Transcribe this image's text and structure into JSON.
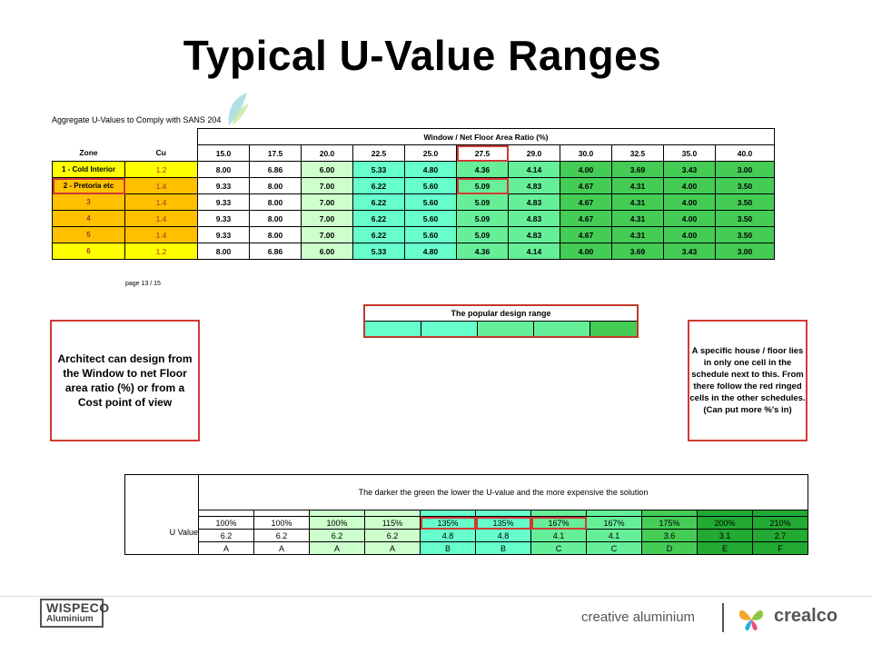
{
  "title": "Typical U-Value Ranges",
  "caption": "Aggregate U-Values to Comply  with SANS 204",
  "page_note": "page 13 / 15",
  "colors": {
    "yellow": "#ffff00",
    "orange": "#ffc000",
    "shade_0": "#ffffff",
    "shade_1": "#ccffcc",
    "shade_2": "#66ffcc",
    "shade_3": "#66ee99",
    "shade_4": "#44cc55",
    "shade_5": "#22aa33",
    "red_ring": "#d03b32"
  },
  "main_table": {
    "super_header": "Window / Net Floor Area Ratio (%)",
    "zone_header": "Zone",
    "cu_header": "Cu",
    "ratios": [
      "15.0",
      "17.5",
      "20.0",
      "22.5",
      "25.0",
      "27.5",
      "29.0",
      "30.0",
      "32.5",
      "35.0",
      "40.0"
    ],
    "rows": [
      {
        "zone": "1 - Cold Interior",
        "cu": "1.2",
        "values": [
          "8.00",
          "6.86",
          "6.00",
          "5.33",
          "4.80",
          "4.36",
          "4.14",
          "4.00",
          "3.69",
          "3.43",
          "3.00"
        ]
      },
      {
        "zone": "2 - Pretoria etc",
        "cu": "1.4",
        "values": [
          "9.33",
          "8.00",
          "7.00",
          "6.22",
          "5.60",
          "5.09",
          "4.83",
          "4.67",
          "4.31",
          "4.00",
          "3.50"
        ]
      },
      {
        "zone": "3",
        "cu": "1.4",
        "values": [
          "9.33",
          "8.00",
          "7.00",
          "6.22",
          "5.60",
          "5.09",
          "4.83",
          "4.67",
          "4.31",
          "4.00",
          "3.50"
        ]
      },
      {
        "zone": "4",
        "cu": "1.4",
        "values": [
          "9.33",
          "8.00",
          "7.00",
          "6.22",
          "5.60",
          "5.09",
          "4.83",
          "4.67",
          "4.31",
          "4.00",
          "3.50"
        ]
      },
      {
        "zone": "5",
        "cu": "1.4",
        "values": [
          "9.33",
          "8.00",
          "7.00",
          "6.22",
          "5.60",
          "5.09",
          "4.83",
          "4.67",
          "4.31",
          "4.00",
          "3.50"
        ]
      },
      {
        "zone": "6",
        "cu": "1.2",
        "values": [
          "8.00",
          "6.86",
          "6.00",
          "5.33",
          "4.80",
          "4.36",
          "4.14",
          "4.00",
          "3.69",
          "3.43",
          "3.00"
        ]
      }
    ]
  },
  "popular_range": {
    "header": "The popular  design range"
  },
  "architect_note": "Architect can design from the Window to net Floor area ratio (%) or from a Cost point of view",
  "house_note": "A specific house / floor lies in only one cell in the schedule next to this. From there follow the red ringed cells in the other schedules. (Can put more %'s in)",
  "bottom_table": {
    "header": "The darker the green the lower the U-value and the more expensive the solution",
    "row_label": "U Value",
    "percents": [
      "100%",
      "100%",
      "100%",
      "115%",
      "135%",
      "135%",
      "167%",
      "167%",
      "175%",
      "200%",
      "210%"
    ],
    "u_values": [
      "6.2",
      "6.2",
      "6.2",
      "6.2",
      "4.8",
      "4.8",
      "4.1",
      "4.1",
      "3.6",
      "3.1",
      "2.7"
    ],
    "grades": [
      "A",
      "A",
      "A",
      "A",
      "B",
      "B",
      "C",
      "C",
      "D",
      "E",
      "F"
    ]
  },
  "footer": {
    "wispeco_line1": "WISPECO",
    "wispeco_line2": "Aluminium",
    "tagline": "creative aluminium",
    "brand": "crealco"
  }
}
